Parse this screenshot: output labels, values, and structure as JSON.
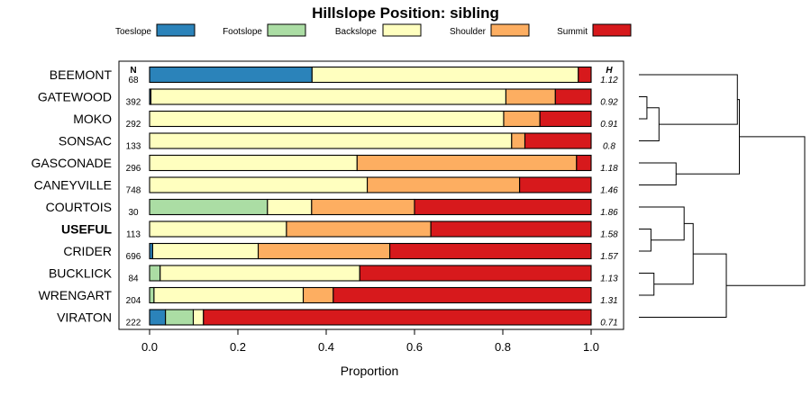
{
  "chart_data": {
    "type": "bar",
    "orientation": "horizontal",
    "stacked": true,
    "title": "Hillslope Position: sibling",
    "xlabel": "Proportion",
    "xlim": [
      0,
      1
    ],
    "xticks": [
      "0.0",
      "0.2",
      "0.4",
      "0.6",
      "0.8",
      "1.0"
    ],
    "n_header": "N",
    "h_header": "H",
    "legend": [
      {
        "name": "Toeslope",
        "color": "#2B83BA"
      },
      {
        "name": "Footslope",
        "color": "#ABDDA4"
      },
      {
        "name": "Backslope",
        "color": "#FFFFBF"
      },
      {
        "name": "Shoulder",
        "color": "#FDAE61"
      },
      {
        "name": "Summit",
        "color": "#D7191C"
      }
    ],
    "rows": [
      {
        "label": "BEEMONT",
        "bold": false,
        "n": "68",
        "h": "1.12",
        "values": [
          0.368,
          0,
          0.603,
          0,
          0.029
        ]
      },
      {
        "label": "GATEWOOD",
        "bold": false,
        "n": "392",
        "h": "0.92",
        "values": [
          0.003,
          0,
          0.804,
          0.112,
          0.081
        ]
      },
      {
        "label": "MOKO",
        "bold": false,
        "n": "292",
        "h": "0.91",
        "values": [
          0,
          0,
          0.802,
          0.082,
          0.116
        ]
      },
      {
        "label": "SONSAC",
        "bold": false,
        "n": "133",
        "h": "0.8",
        "values": [
          0,
          0,
          0.82,
          0.03,
          0.15
        ]
      },
      {
        "label": "GASCONADE",
        "bold": false,
        "n": "296",
        "h": "1.18",
        "values": [
          0,
          0,
          0.47,
          0.497,
          0.033
        ]
      },
      {
        "label": "CANEYVILLE",
        "bold": false,
        "n": "748",
        "h": "1.46",
        "values": [
          0,
          0,
          0.493,
          0.345,
          0.162
        ]
      },
      {
        "label": "COURTOIS",
        "bold": false,
        "n": "30",
        "h": "1.86",
        "values": [
          0,
          0.267,
          0.1,
          0.233,
          0.4
        ]
      },
      {
        "label": "USEFUL",
        "bold": true,
        "n": "113",
        "h": "1.58",
        "values": [
          0,
          0,
          0.31,
          0.327,
          0.363
        ]
      },
      {
        "label": "CRIDER",
        "bold": false,
        "n": "696",
        "h": "1.57",
        "values": [
          0.007,
          0,
          0.239,
          0.298,
          0.456
        ]
      },
      {
        "label": "BUCKLICK",
        "bold": false,
        "n": "84",
        "h": "1.13",
        "values": [
          0,
          0.024,
          0.452,
          0,
          0.524
        ]
      },
      {
        "label": "WRENGART",
        "bold": false,
        "n": "204",
        "h": "1.31",
        "values": [
          0,
          0.01,
          0.338,
          0.068,
          0.584
        ]
      },
      {
        "label": "VIRATON",
        "bold": false,
        "n": "222",
        "h": "0.71",
        "values": [
          0.036,
          0.063,
          0.023,
          0,
          0.878
        ]
      }
    ],
    "dendrogram": {
      "leaf_order": [
        "BEEMONT",
        "GATEWOOD",
        "MOKO",
        "SONSAC",
        "GASCONADE",
        "CANEYVILLE",
        "COURTOIS",
        "USEFUL",
        "CRIDER",
        "BUCKLICK",
        "WRENGART",
        "VIRATON"
      ],
      "merges": [
        {
          "a": "L1",
          "b": "L2",
          "height": 0.08
        },
        {
          "a": "C0",
          "b": "L3",
          "height": 0.2
        },
        {
          "a": "L0",
          "b": "C1",
          "height": 0.98
        },
        {
          "a": "L4",
          "b": "L5",
          "height": 0.37
        },
        {
          "a": "C2",
          "b": "C3",
          "height": 1.0
        },
        {
          "a": "L7",
          "b": "L8",
          "height": 0.12
        },
        {
          "a": "L6",
          "b": "C5",
          "height": 0.45
        },
        {
          "a": "L9",
          "b": "L10",
          "height": 0.15
        },
        {
          "a": "C6",
          "b": "C7",
          "height": 0.54
        },
        {
          "a": "C8",
          "b": "L11",
          "height": 0.87
        },
        {
          "a": "C4",
          "b": "C9",
          "height": 1.65
        }
      ],
      "max_height": 1.65
    }
  }
}
